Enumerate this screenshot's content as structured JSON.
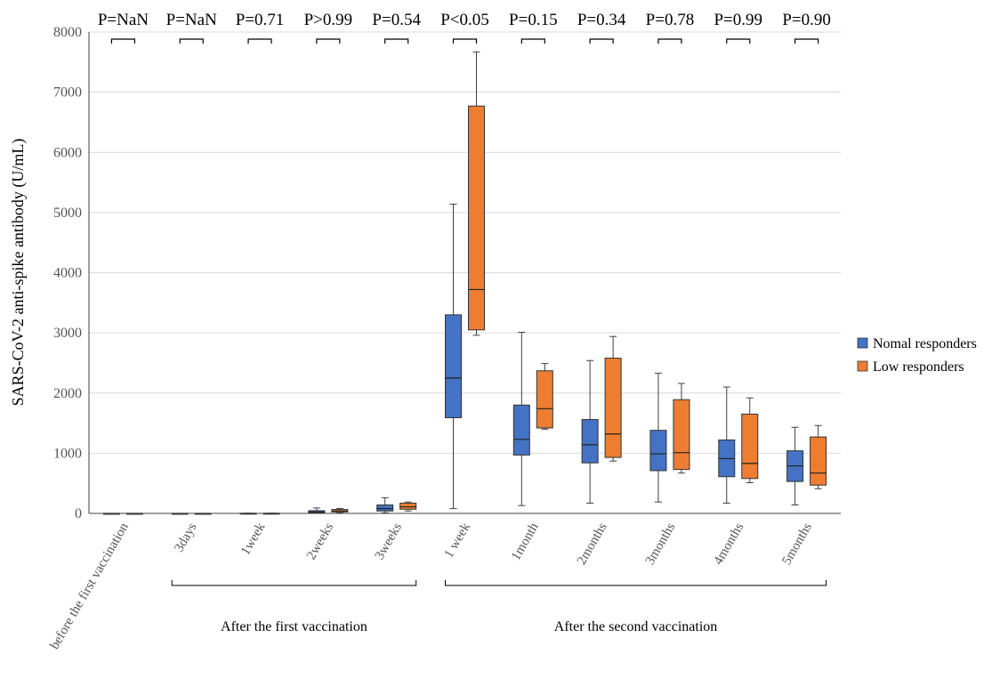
{
  "chart_data": {
    "type": "box",
    "ylabel": "SARS-CoV-2 anti-spike antibody (U/mL)",
    "xlabel": "",
    "ylim": [
      0,
      8000
    ],
    "yticks": [
      0,
      1000,
      2000,
      3000,
      4000,
      5000,
      6000,
      7000,
      8000
    ],
    "grid": "horizontal",
    "legend_position": "right",
    "categories": [
      "before the first vaccination",
      "3days",
      "1week",
      "2weeks",
      "3weeks",
      "1 week",
      "1month",
      "2months",
      "3months",
      "4months",
      "5months"
    ],
    "p_values": [
      "P=NaN",
      "P=NaN",
      "P=0.71",
      "P>0.99",
      "P=0.54",
      "P<0.05",
      "P=0.15",
      "P=0.34",
      "P=0.78",
      "P=0.99",
      "P=0.90"
    ],
    "groups": [
      {
        "label": "After the first vaccination",
        "from": 1,
        "to": 4
      },
      {
        "label": "After the second vaccination",
        "from": 5,
        "to": 10
      }
    ],
    "series": [
      {
        "name": "Nomal responders",
        "color": "#4472c4",
        "boxes": [
          {
            "min": 0,
            "q1": 0,
            "median": 0,
            "q3": 0,
            "max": 0
          },
          {
            "min": 0,
            "q1": 0,
            "median": 0,
            "q3": 0,
            "max": 0
          },
          {
            "min": 0,
            "q1": 0,
            "median": 0,
            "q3": 2,
            "max": 4
          },
          {
            "min": 0,
            "q1": 10,
            "median": 25,
            "q3": 45,
            "max": 90
          },
          {
            "min": 10,
            "q1": 40,
            "median": 80,
            "q3": 140,
            "max": 260
          },
          {
            "min": 80,
            "q1": 1590,
            "median": 2250,
            "q3": 3300,
            "max": 5140
          },
          {
            "min": 130,
            "q1": 970,
            "median": 1230,
            "q3": 1800,
            "max": 3010
          },
          {
            "min": 170,
            "q1": 840,
            "median": 1140,
            "q3": 1560,
            "max": 2540
          },
          {
            "min": 190,
            "q1": 710,
            "median": 990,
            "q3": 1380,
            "max": 2330
          },
          {
            "min": 170,
            "q1": 610,
            "median": 910,
            "q3": 1220,
            "max": 2100
          },
          {
            "min": 140,
            "q1": 530,
            "median": 790,
            "q3": 1040,
            "max": 1430
          }
        ]
      },
      {
        "name": "Low responders",
        "color": "#ed7d31",
        "boxes": [
          {
            "min": 0,
            "q1": 0,
            "median": 0,
            "q3": 0,
            "max": 0
          },
          {
            "min": 0,
            "q1": 0,
            "median": 0,
            "q3": 0,
            "max": 0
          },
          {
            "min": 0,
            "q1": 0,
            "median": 0,
            "q3": 2,
            "max": 4
          },
          {
            "min": 10,
            "q1": 25,
            "median": 40,
            "q3": 65,
            "max": 80
          },
          {
            "min": 40,
            "q1": 70,
            "median": 110,
            "q3": 170,
            "max": 190
          },
          {
            "min": 2960,
            "q1": 3050,
            "median": 3720,
            "q3": 6770,
            "max": 7670
          },
          {
            "min": 1400,
            "q1": 1420,
            "median": 1740,
            "q3": 2370,
            "max": 2490
          },
          {
            "min": 870,
            "q1": 930,
            "median": 1320,
            "q3": 2580,
            "max": 2940
          },
          {
            "min": 670,
            "q1": 730,
            "median": 1010,
            "q3": 1890,
            "max": 2160
          },
          {
            "min": 510,
            "q1": 580,
            "median": 830,
            "q3": 1650,
            "max": 1920
          },
          {
            "min": 410,
            "q1": 470,
            "median": 670,
            "q3": 1270,
            "max": 1460
          }
        ]
      }
    ]
  }
}
